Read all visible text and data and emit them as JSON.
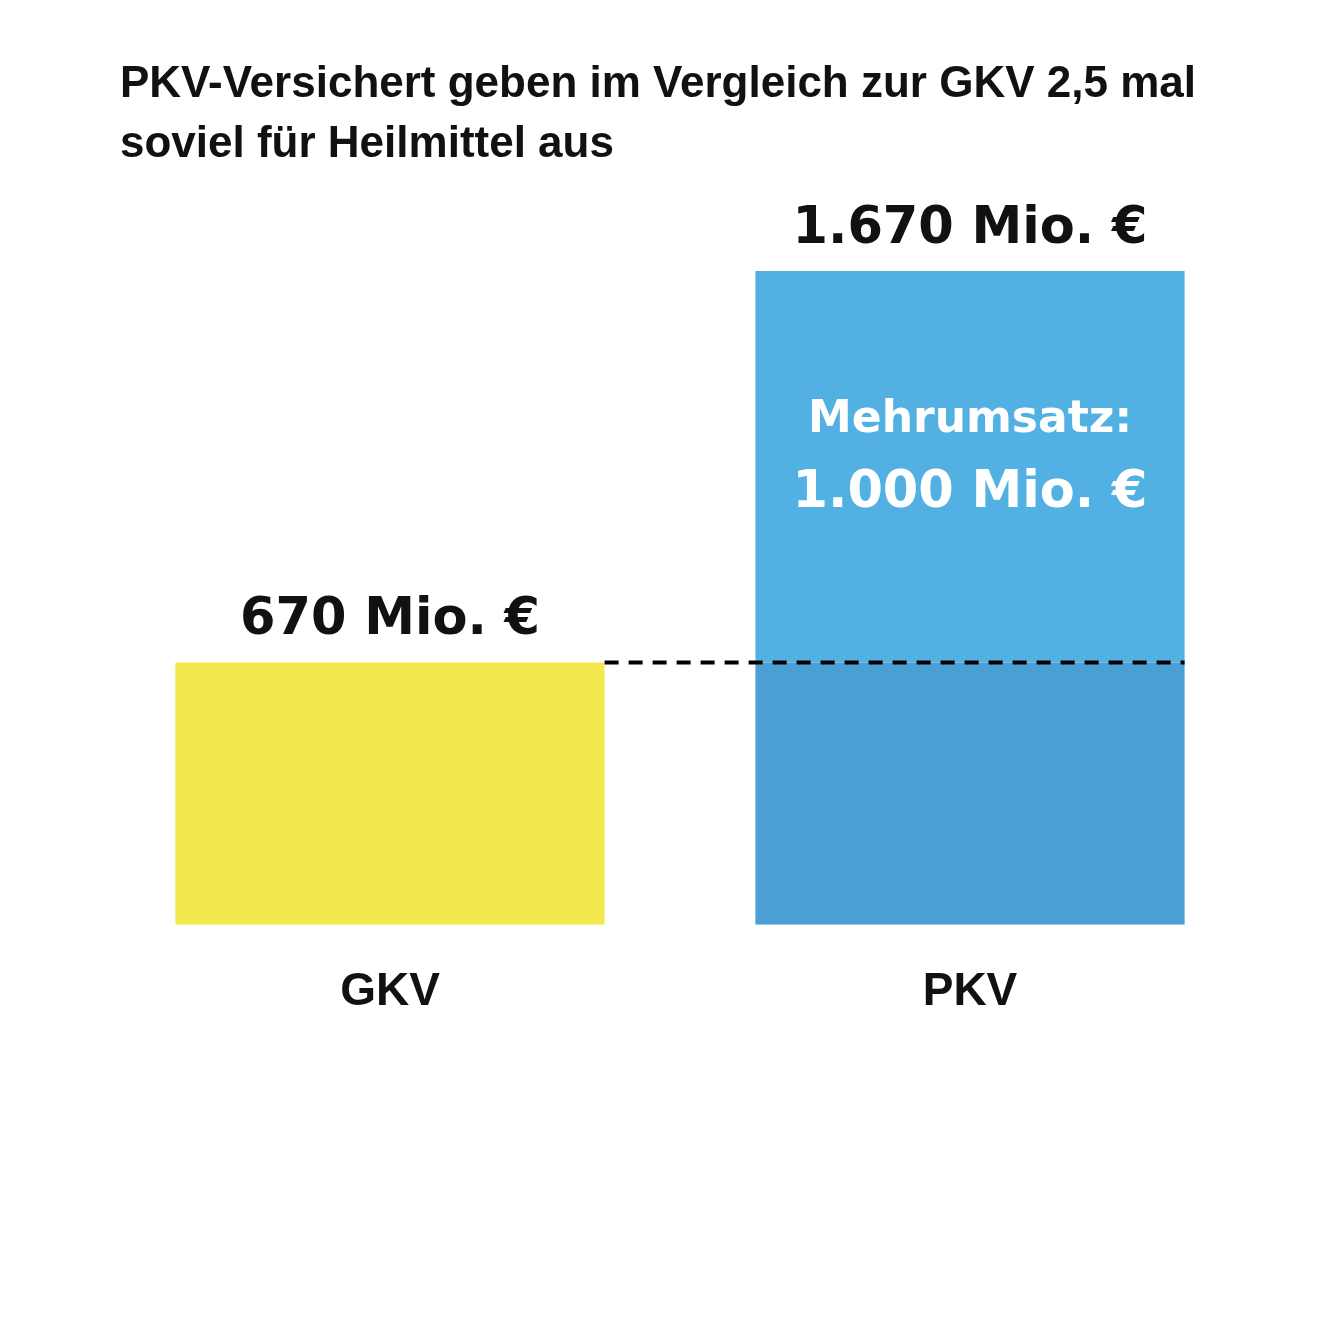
{
  "chart_data": {
    "type": "bar",
    "title": "PKV-Versichert geben im Vergleich zur GKV 2,5 mal soviel für Heilmittel aus",
    "categories": [
      "GKV",
      "PKV"
    ],
    "stacked": true,
    "series": [
      {
        "colors": [
          "#f3e94f",
          "#4a9fd5"
        ],
        "values": [
          670,
          670
        ]
      },
      {
        "color": "#52b0e3",
        "values": [
          null,
          1000
        ],
        "value_labels": [
          null,
          "Mehrumsatz: 1.000 Mio. €"
        ]
      }
    ],
    "totals": [
      "670 Mio. €",
      "1.670 Mio. €"
    ],
    "ref_lines": [
      {
        "axis": "y",
        "value": 670,
        "color": "#000000",
        "line_style": "dashed"
      }
    ],
    "tick_labels": "x",
    "grid": false,
    "legend": false
  }
}
